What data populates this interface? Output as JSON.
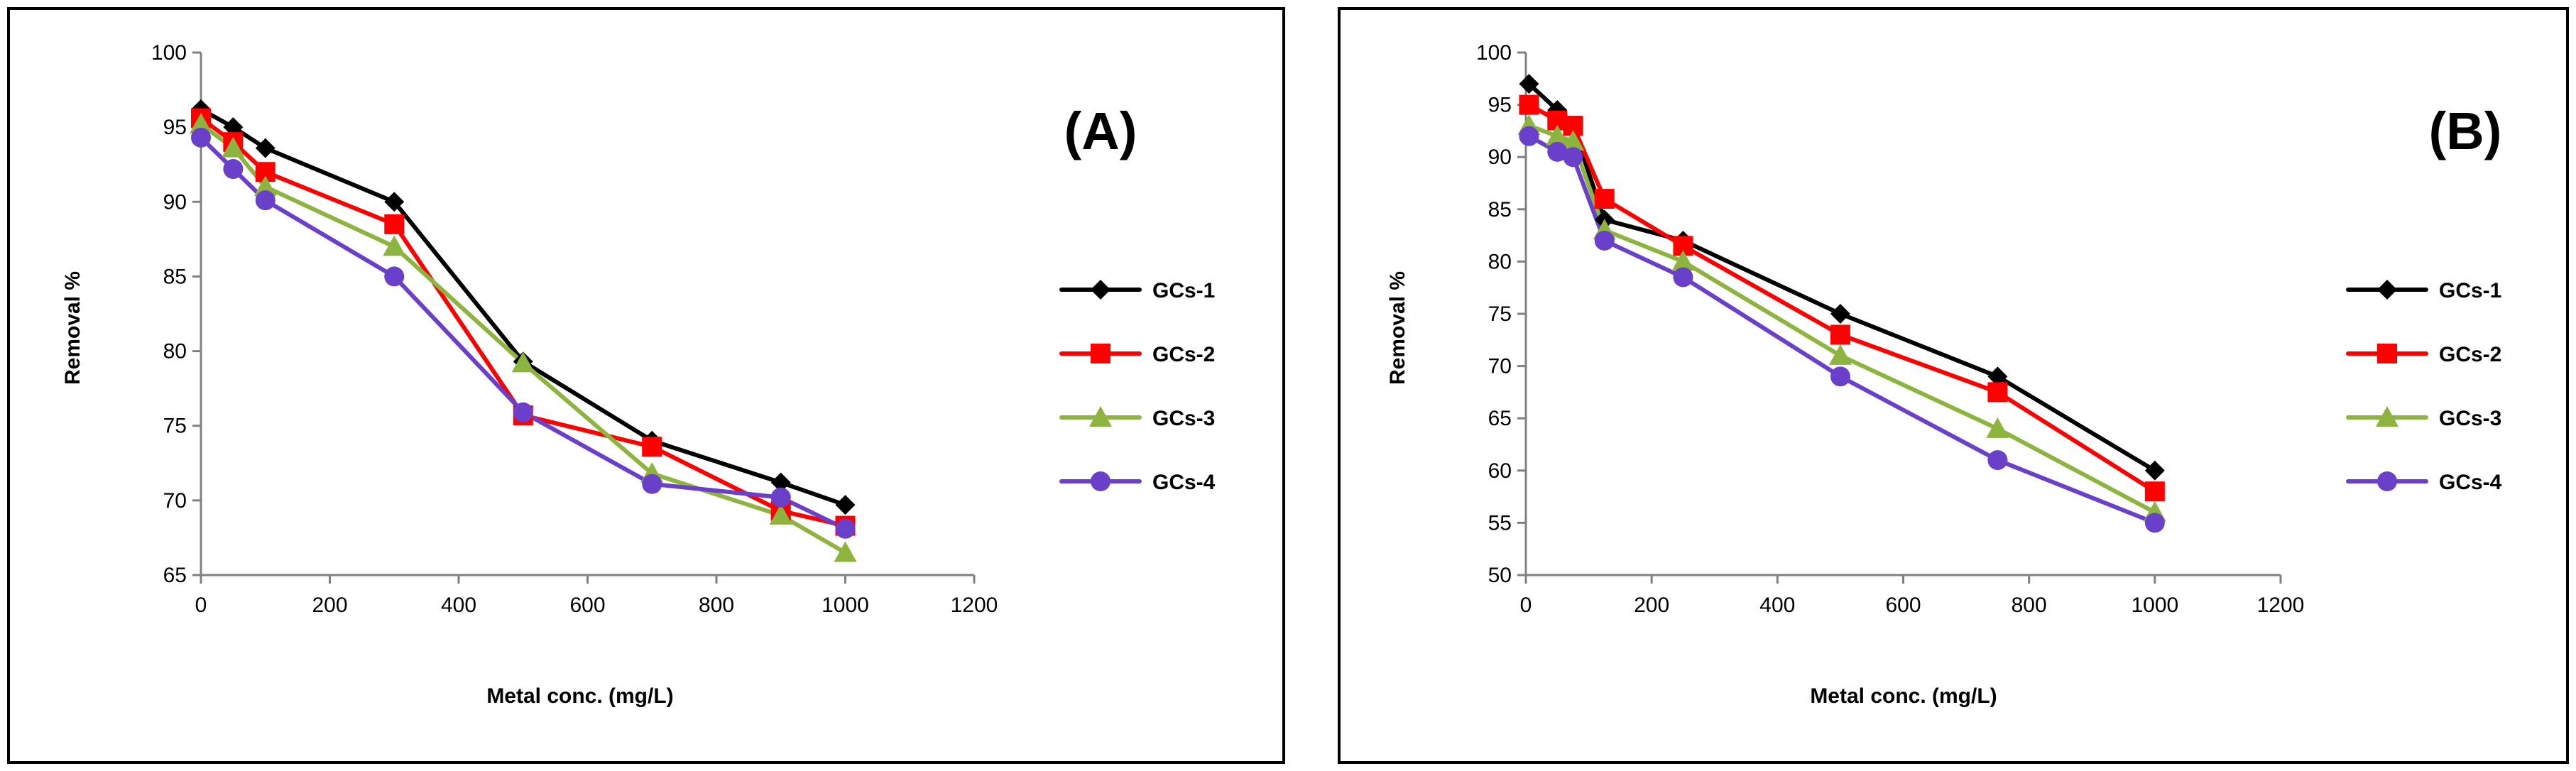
{
  "chart_data": [
    {
      "type": "line",
      "panel_label": "(A)",
      "xlabel": "Metal conc. (mg/L)",
      "ylabel": "Removal %",
      "xlim": [
        0,
        1200
      ],
      "ylim": [
        65,
        100
      ],
      "x_ticks": [
        "0",
        "200",
        "400",
        "600",
        "800",
        "1000",
        "1200"
      ],
      "y_ticks": [
        "65",
        "70",
        "75",
        "80",
        "85",
        "90",
        "95",
        "100"
      ],
      "legend_position": "right",
      "series": [
        {
          "name": "GCs-1",
          "color": "#000000",
          "marker": "diamond",
          "x": [
            0,
            50,
            100,
            300,
            500,
            700,
            900,
            1000
          ],
          "y": [
            96.2,
            95.0,
            93.6,
            90.0,
            79.3,
            74.0,
            71.2,
            69.7
          ]
        },
        {
          "name": "GCs-2",
          "color": "#ff0000",
          "marker": "square",
          "x": [
            0,
            50,
            100,
            300,
            500,
            700,
            900,
            1000
          ],
          "y": [
            95.6,
            94.0,
            92.0,
            88.5,
            75.7,
            73.6,
            69.3,
            68.3
          ]
        },
        {
          "name": "GCs-3",
          "color": "#8db43e",
          "marker": "triangle",
          "x": [
            0,
            50,
            100,
            300,
            500,
            700,
            900,
            1000
          ],
          "y": [
            95.2,
            93.6,
            91.0,
            87.0,
            79.2,
            71.8,
            69.0,
            66.5
          ]
        },
        {
          "name": "GCs-4",
          "color": "#6a3fc9",
          "marker": "circle",
          "x": [
            0,
            50,
            100,
            300,
            500,
            700,
            900,
            1000
          ],
          "y": [
            94.3,
            92.2,
            90.1,
            85.0,
            75.9,
            71.1,
            70.2,
            68.1
          ]
        }
      ]
    },
    {
      "type": "line",
      "panel_label": "(B)",
      "xlabel": "Metal conc. (mg/L)",
      "ylabel": "Removal %",
      "xlim": [
        0,
        1200
      ],
      "ylim": [
        50,
        100
      ],
      "x_ticks": [
        "0",
        "200",
        "400",
        "600",
        "800",
        "1000",
        "1200"
      ],
      "y_ticks": [
        "50",
        "55",
        "60",
        "65",
        "70",
        "75",
        "80",
        "85",
        "90",
        "95",
        "100"
      ],
      "legend_position": "right",
      "series": [
        {
          "name": "GCs-1",
          "color": "#000000",
          "marker": "diamond",
          "x": [
            5,
            50,
            75,
            125,
            250,
            500,
            750,
            1000
          ],
          "y": [
            97.0,
            94.5,
            93.0,
            84.0,
            82.0,
            75.0,
            69.0,
            60.0
          ]
        },
        {
          "name": "GCs-2",
          "color": "#ff0000",
          "marker": "square",
          "x": [
            5,
            50,
            75,
            125,
            250,
            500,
            750,
            1000
          ],
          "y": [
            95.0,
            93.5,
            93.0,
            86.0,
            81.5,
            73.0,
            67.5,
            58.0
          ]
        },
        {
          "name": "GCs-3",
          "color": "#8db43e",
          "marker": "triangle",
          "x": [
            5,
            50,
            75,
            125,
            250,
            500,
            750,
            1000
          ],
          "y": [
            93.0,
            92.0,
            91.5,
            83.0,
            80.0,
            71.0,
            64.0,
            56.0
          ]
        },
        {
          "name": "GCs-4",
          "color": "#6a3fc9",
          "marker": "circle",
          "x": [
            5,
            50,
            75,
            125,
            250,
            500,
            750,
            1000
          ],
          "y": [
            92.0,
            90.5,
            90.0,
            82.0,
            78.5,
            69.0,
            61.0,
            55.0
          ]
        }
      ]
    }
  ]
}
